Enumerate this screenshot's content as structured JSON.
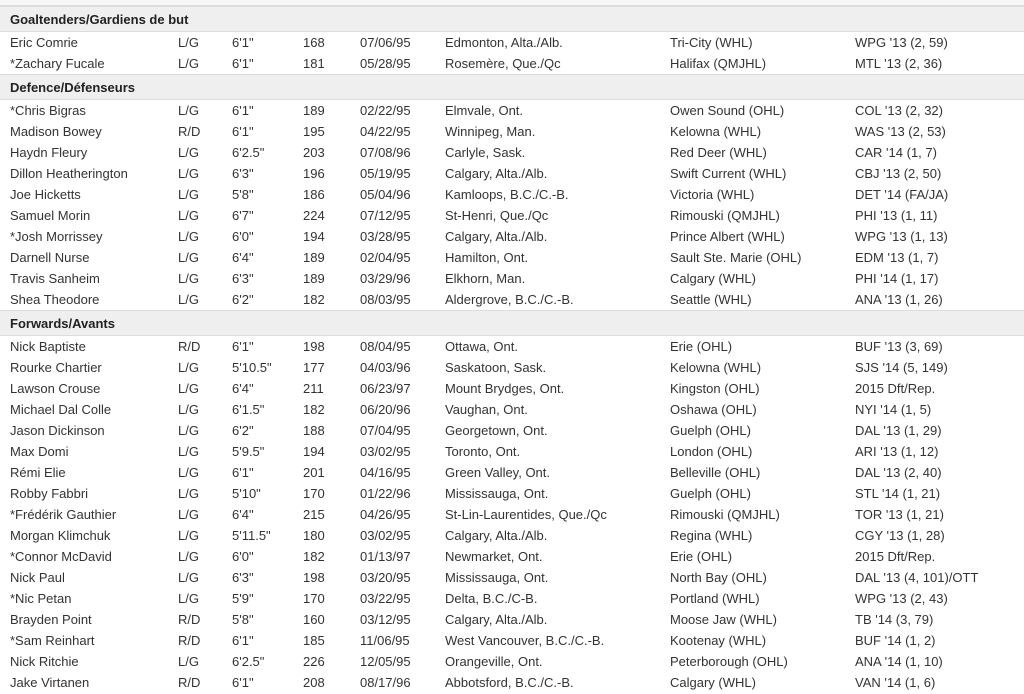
{
  "groups": [
    {
      "title": "Goaltenders/Gardiens de but",
      "rows": [
        [
          "Eric Comrie",
          "L/G",
          "6'1\"",
          "168",
          "07/06/95",
          "Edmonton, Alta./Alb.",
          "Tri-City (WHL)",
          "WPG '13 (2, 59)"
        ],
        [
          "*Zachary Fucale",
          "L/G",
          "6'1\"",
          "181",
          "05/28/95",
          "Rosemère, Que./Qc",
          "Halifax (QMJHL)",
          "MTL '13 (2, 36)"
        ]
      ]
    },
    {
      "title": "Defence/Défenseurs",
      "rows": [
        [
          "*Chris Bigras",
          "L/G",
          "6'1\"",
          "189",
          "02/22/95",
          "Elmvale, Ont.",
          "Owen Sound (OHL)",
          "COL '13 (2, 32)"
        ],
        [
          "Madison Bowey",
          "R/D",
          "6'1\"",
          "195",
          "04/22/95",
          "Winnipeg, Man.",
          "Kelowna (WHL)",
          "WAS '13 (2, 53)"
        ],
        [
          "Haydn Fleury",
          "L/G",
          "6'2.5\"",
          "203",
          "07/08/96",
          "Carlyle, Sask.",
          "Red Deer (WHL)",
          "CAR '14 (1, 7)"
        ],
        [
          "Dillon Heatherington",
          "L/G",
          "6'3\"",
          "196",
          "05/19/95",
          "Calgary, Alta./Alb.",
          "Swift Current (WHL)",
          "CBJ '13 (2, 50)"
        ],
        [
          "Joe Hicketts",
          "L/G",
          "5'8\"",
          "186",
          "05/04/96",
          "Kamloops, B.C./C.-B.",
          "Victoria (WHL)",
          "DET '14 (FA/JA)"
        ],
        [
          "Samuel Morin",
          "L/G",
          "6'7\"",
          "224",
          "07/12/95",
          "St-Henri, Que./Qc",
          "Rimouski (QMJHL)",
          "PHI '13 (1, 11)"
        ],
        [
          "*Josh Morrissey",
          "L/G",
          "6'0\"",
          "194",
          "03/28/95",
          "Calgary, Alta./Alb.",
          "Prince Albert (WHL)",
          "WPG '13 (1, 13)"
        ],
        [
          "Darnell Nurse",
          "L/G",
          "6'4\"",
          "189",
          "02/04/95",
          "Hamilton, Ont.",
          "Sault Ste. Marie (OHL)",
          "EDM '13 (1, 7)"
        ],
        [
          "Travis Sanheim",
          "L/G",
          "6'3\"",
          "189",
          "03/29/96",
          "Elkhorn, Man.",
          "Calgary (WHL)",
          "PHI '14 (1, 17)"
        ],
        [
          "Shea Theodore",
          "L/G",
          "6'2\"",
          "182",
          "08/03/95",
          "Aldergrove, B.C./C.-B.",
          "Seattle (WHL)",
          "ANA '13 (1, 26)"
        ]
      ]
    },
    {
      "title": "Forwards/Avants",
      "rows": [
        [
          "Nick Baptiste",
          "R/D",
          "6'1\"",
          "198",
          "08/04/95",
          "Ottawa, Ont.",
          "Erie (OHL)",
          "BUF '13 (3, 69)"
        ],
        [
          "Rourke Chartier",
          "L/G",
          "5'10.5\"",
          "177",
          "04/03/96",
          "Saskatoon, Sask.",
          "Kelowna (WHL)",
          "SJS '14 (5, 149)"
        ],
        [
          "Lawson Crouse",
          "L/G",
          "6'4\"",
          "211",
          "06/23/97",
          "Mount Brydges, Ont.",
          "Kingston (OHL)",
          "2015 Dft/Rep."
        ],
        [
          "Michael Dal Colle",
          "L/G",
          "6'1.5\"",
          "182",
          "06/20/96",
          "Vaughan, Ont.",
          "Oshawa (OHL)",
          "NYI '14 (1, 5)"
        ],
        [
          "Jason Dickinson",
          "L/G",
          "6'2\"",
          "188",
          "07/04/95",
          "Georgetown, Ont.",
          "Guelph (OHL)",
          "DAL '13 (1, 29)"
        ],
        [
          "Max Domi",
          "L/G",
          "5'9.5\"",
          "194",
          "03/02/95",
          "Toronto, Ont.",
          "London (OHL)",
          "ARI '13 (1, 12)"
        ],
        [
          "Rémi Elie",
          "L/G",
          "6'1\"",
          "201",
          "04/16/95",
          "Green Valley, Ont.",
          "Belleville (OHL)",
          "DAL '13 (2, 40)"
        ],
        [
          "Robby Fabbri",
          "L/G",
          "5'10\"",
          "170",
          "01/22/96",
          "Mississauga, Ont.",
          "Guelph (OHL)",
          "STL '14 (1, 21)"
        ],
        [
          "*Frédérik Gauthier",
          "L/G",
          "6'4\"",
          "215",
          "04/26/95",
          "St-Lin-Laurentides, Que./Qc",
          "Rimouski (QMJHL)",
          "TOR '13 (1, 21)"
        ],
        [
          "Morgan Klimchuk",
          "L/G",
          "5'11.5\"",
          "180",
          "03/02/95",
          "Calgary, Alta./Alb.",
          "Regina (WHL)",
          "CGY '13 (1, 28)"
        ],
        [
          "*Connor McDavid",
          "L/G",
          "6'0\"",
          "182",
          "01/13/97",
          "Newmarket, Ont.",
          "Erie (OHL)",
          "2015 Dft/Rep."
        ],
        [
          "Nick Paul",
          "L/G",
          "6'3\"",
          "198",
          "03/20/95",
          "Mississauga, Ont.",
          "North Bay (OHL)",
          "DAL '13 (4, 101)/OTT"
        ],
        [
          "*Nic Petan",
          "L/G",
          "5'9\"",
          "170",
          "03/22/95",
          "Delta, B.C./C-B.",
          "Portland (WHL)",
          "WPG '13 (2, 43)"
        ],
        [
          "Brayden Point",
          "R/D",
          "5'8\"",
          "160",
          "03/12/95",
          "Calgary, Alta./Alb.",
          "Moose Jaw (WHL)",
          "TB '14 (3, 79)"
        ],
        [
          "*Sam Reinhart",
          "R/D",
          "6'1\"",
          "185",
          "11/06/95",
          "West Vancouver, B.C./C.-B.",
          "Kootenay (WHL)",
          "BUF '14 (1, 2)"
        ],
        [
          "Nick Ritchie",
          "L/G",
          "6'2.5\"",
          "226",
          "12/05/95",
          "Orangeville, Ont.",
          "Peterborough (OHL)",
          "ANA '14 (1, 10)"
        ],
        [
          "Jake Virtanen",
          "R/D",
          "6'1\"",
          "208",
          "08/17/96",
          "Abbotsford, B.C./C.-B.",
          "Calgary (WHL)",
          "VAN '14 (1, 6)"
        ]
      ]
    }
  ]
}
